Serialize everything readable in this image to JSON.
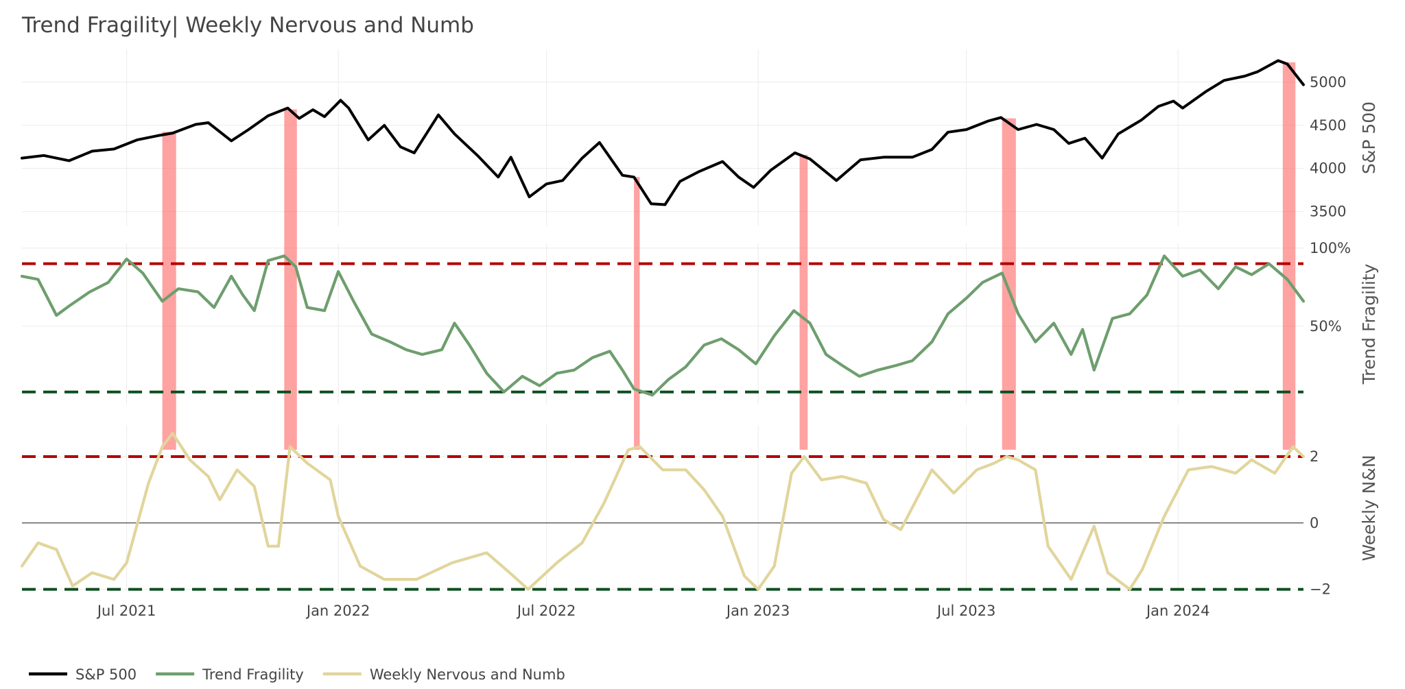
{
  "title": "Trend Fragility| Weekly Nervous and Numb",
  "chart_data": {
    "type": "line",
    "title": "Trend Fragility| Weekly Nervous and Numb",
    "x_range": [
      "2021-04-01",
      "2024-04-19"
    ],
    "x_ticks": [
      {
        "date": "2021-07-01",
        "label": "Jul 2021"
      },
      {
        "date": "2022-01-01",
        "label": "Jan 2022"
      },
      {
        "date": "2022-07-01",
        "label": "Jul 2022"
      },
      {
        "date": "2023-01-01",
        "label": "Jan 2023"
      },
      {
        "date": "2023-07-01",
        "label": "Jul 2023"
      },
      {
        "date": "2024-01-01",
        "label": "Jan 2024"
      }
    ],
    "panels": [
      {
        "id": "sp500",
        "ylabel": "S&P 500",
        "ylim": [
          3330,
          5380
        ],
        "yticks": [
          {
            "v": 3500,
            "label": "3500"
          },
          {
            "v": 4000,
            "label": "4000"
          },
          {
            "v": 4500,
            "label": "4500"
          },
          {
            "v": 5000,
            "label": "5000"
          }
        ]
      },
      {
        "id": "fragility",
        "ylabel": "Trend Fragility",
        "ylim": [
          0,
          1.03
        ],
        "yticks": [
          {
            "v": 0.5,
            "label": "50%"
          },
          {
            "v": 1.0,
            "label": "100%"
          }
        ],
        "thresholds": [
          {
            "v": 0.9,
            "color": "#b30000"
          },
          {
            "v": 0.08,
            "color": "#0b4f1f"
          }
        ]
      },
      {
        "id": "nn",
        "ylabel": "Weekly N&N",
        "ylim": [
          -2.05,
          2.95
        ],
        "yticks": [
          {
            "v": -2,
            "label": "−2"
          },
          {
            "v": 0,
            "label": "0"
          },
          {
            "v": 2,
            "label": "2"
          }
        ],
        "zero_line": true,
        "thresholds": [
          {
            "v": 2,
            "color": "#b30000"
          },
          {
            "v": -2,
            "color": "#0b4f1f"
          }
        ]
      }
    ],
    "signal_bands": [
      {
        "start": "2021-08-01",
        "end": "2021-08-13"
      },
      {
        "start": "2021-11-15",
        "end": "2021-11-26"
      },
      {
        "start": "2022-09-15",
        "end": "2022-09-20"
      },
      {
        "start": "2023-02-06",
        "end": "2023-02-13"
      },
      {
        "start": "2023-08-01",
        "end": "2023-08-13"
      },
      {
        "start": "2024-04-01",
        "end": "2024-04-12"
      }
    ],
    "series": [
      {
        "name": "S&P 500",
        "panel": "sp500",
        "color": "#000000",
        "points": [
          [
            "2021-04-01",
            4120
          ],
          [
            "2021-04-20",
            4150
          ],
          [
            "2021-05-12",
            4090
          ],
          [
            "2021-06-01",
            4200
          ],
          [
            "2021-06-20",
            4225
          ],
          [
            "2021-07-10",
            4330
          ],
          [
            "2021-07-28",
            4380
          ],
          [
            "2021-08-10",
            4410
          ],
          [
            "2021-08-30",
            4510
          ],
          [
            "2021-09-10",
            4530
          ],
          [
            "2021-09-30",
            4320
          ],
          [
            "2021-10-15",
            4450
          ],
          [
            "2021-11-01",
            4610
          ],
          [
            "2021-11-18",
            4700
          ],
          [
            "2021-11-28",
            4580
          ],
          [
            "2021-12-10",
            4680
          ],
          [
            "2021-12-20",
            4600
          ],
          [
            "2022-01-03",
            4790
          ],
          [
            "2022-01-10",
            4700
          ],
          [
            "2022-01-27",
            4330
          ],
          [
            "2022-02-10",
            4500
          ],
          [
            "2022-02-24",
            4250
          ],
          [
            "2022-03-08",
            4180
          ],
          [
            "2022-03-29",
            4620
          ],
          [
            "2022-04-12",
            4400
          ],
          [
            "2022-05-02",
            4150
          ],
          [
            "2022-05-20",
            3900
          ],
          [
            "2022-05-31",
            4130
          ],
          [
            "2022-06-16",
            3670
          ],
          [
            "2022-07-01",
            3820
          ],
          [
            "2022-07-15",
            3860
          ],
          [
            "2022-08-01",
            4120
          ],
          [
            "2022-08-16",
            4300
          ],
          [
            "2022-09-05",
            3920
          ],
          [
            "2022-09-15",
            3900
          ],
          [
            "2022-09-30",
            3590
          ],
          [
            "2022-10-12",
            3580
          ],
          [
            "2022-10-25",
            3850
          ],
          [
            "2022-11-10",
            3960
          ],
          [
            "2022-12-01",
            4080
          ],
          [
            "2022-12-15",
            3900
          ],
          [
            "2022-12-28",
            3780
          ],
          [
            "2023-01-12",
            3980
          ],
          [
            "2023-02-02",
            4180
          ],
          [
            "2023-02-15",
            4110
          ],
          [
            "2023-03-10",
            3860
          ],
          [
            "2023-03-31",
            4100
          ],
          [
            "2023-04-20",
            4130
          ],
          [
            "2023-05-15",
            4130
          ],
          [
            "2023-06-01",
            4220
          ],
          [
            "2023-06-15",
            4420
          ],
          [
            "2023-07-01",
            4450
          ],
          [
            "2023-07-20",
            4550
          ],
          [
            "2023-07-31",
            4590
          ],
          [
            "2023-08-15",
            4450
          ],
          [
            "2023-08-31",
            4510
          ],
          [
            "2023-09-15",
            4450
          ],
          [
            "2023-09-28",
            4290
          ],
          [
            "2023-10-12",
            4350
          ],
          [
            "2023-10-27",
            4120
          ],
          [
            "2023-11-10",
            4400
          ],
          [
            "2023-11-30",
            4560
          ],
          [
            "2023-12-15",
            4720
          ],
          [
            "2023-12-28",
            4780
          ],
          [
            "2024-01-05",
            4700
          ],
          [
            "2024-01-25",
            4890
          ],
          [
            "2024-02-10",
            5020
          ],
          [
            "2024-02-28",
            5070
          ],
          [
            "2024-03-10",
            5120
          ],
          [
            "2024-03-28",
            5250
          ],
          [
            "2024-04-05",
            5210
          ],
          [
            "2024-04-19",
            4970
          ]
        ]
      },
      {
        "name": "Trend Fragility",
        "panel": "fragility",
        "color": "#6e9e6e",
        "points": [
          [
            "2021-04-01",
            0.82
          ],
          [
            "2021-04-15",
            0.8
          ],
          [
            "2021-05-01",
            0.57
          ],
          [
            "2021-05-12",
            0.63
          ],
          [
            "2021-05-30",
            0.72
          ],
          [
            "2021-06-15",
            0.78
          ],
          [
            "2021-07-01",
            0.93
          ],
          [
            "2021-07-15",
            0.84
          ],
          [
            "2021-08-01",
            0.66
          ],
          [
            "2021-08-15",
            0.74
          ],
          [
            "2021-09-01",
            0.72
          ],
          [
            "2021-09-15",
            0.62
          ],
          [
            "2021-09-30",
            0.82
          ],
          [
            "2021-10-10",
            0.7
          ],
          [
            "2021-10-20",
            0.6
          ],
          [
            "2021-11-01",
            0.92
          ],
          [
            "2021-11-15",
            0.95
          ],
          [
            "2021-11-25",
            0.88
          ],
          [
            "2021-12-05",
            0.62
          ],
          [
            "2021-12-20",
            0.6
          ],
          [
            "2022-01-01",
            0.85
          ],
          [
            "2022-01-15",
            0.65
          ],
          [
            "2022-01-30",
            0.45
          ],
          [
            "2022-02-15",
            0.4
          ],
          [
            "2022-03-01",
            0.35
          ],
          [
            "2022-03-15",
            0.32
          ],
          [
            "2022-04-01",
            0.35
          ],
          [
            "2022-04-12",
            0.52
          ],
          [
            "2022-04-25",
            0.38
          ],
          [
            "2022-05-10",
            0.2
          ],
          [
            "2022-05-25",
            0.08
          ],
          [
            "2022-06-10",
            0.18
          ],
          [
            "2022-06-25",
            0.12
          ],
          [
            "2022-07-10",
            0.2
          ],
          [
            "2022-07-25",
            0.22
          ],
          [
            "2022-08-10",
            0.3
          ],
          [
            "2022-08-25",
            0.34
          ],
          [
            "2022-09-05",
            0.22
          ],
          [
            "2022-09-15",
            0.1
          ],
          [
            "2022-10-01",
            0.06
          ],
          [
            "2022-10-15",
            0.16
          ],
          [
            "2022-10-30",
            0.24
          ],
          [
            "2022-11-15",
            0.38
          ],
          [
            "2022-11-30",
            0.42
          ],
          [
            "2022-12-15",
            0.35
          ],
          [
            "2022-12-30",
            0.26
          ],
          [
            "2023-01-15",
            0.44
          ],
          [
            "2023-02-01",
            0.6
          ],
          [
            "2023-02-15",
            0.52
          ],
          [
            "2023-03-01",
            0.32
          ],
          [
            "2023-03-15",
            0.25
          ],
          [
            "2023-03-30",
            0.18
          ],
          [
            "2023-04-15",
            0.22
          ],
          [
            "2023-05-01",
            0.25
          ],
          [
            "2023-05-15",
            0.28
          ],
          [
            "2023-06-01",
            0.4
          ],
          [
            "2023-06-15",
            0.58
          ],
          [
            "2023-07-01",
            0.68
          ],
          [
            "2023-07-15",
            0.78
          ],
          [
            "2023-08-01",
            0.84
          ],
          [
            "2023-08-15",
            0.58
          ],
          [
            "2023-08-30",
            0.4
          ],
          [
            "2023-09-15",
            0.52
          ],
          [
            "2023-09-30",
            0.32
          ],
          [
            "2023-10-10",
            0.48
          ],
          [
            "2023-10-20",
            0.22
          ],
          [
            "2023-11-05",
            0.55
          ],
          [
            "2023-11-20",
            0.58
          ],
          [
            "2023-12-05",
            0.7
          ],
          [
            "2023-12-20",
            0.95
          ],
          [
            "2024-01-05",
            0.82
          ],
          [
            "2024-01-20",
            0.86
          ],
          [
            "2024-02-05",
            0.74
          ],
          [
            "2024-02-20",
            0.88
          ],
          [
            "2024-03-05",
            0.83
          ],
          [
            "2024-03-20",
            0.9
          ],
          [
            "2024-04-05",
            0.8
          ],
          [
            "2024-04-19",
            0.66
          ]
        ]
      },
      {
        "name": "Weekly Nervous and Numb",
        "panel": "nn",
        "color": "#e1d59c",
        "points": [
          [
            "2021-04-01",
            -1.3
          ],
          [
            "2021-04-15",
            -0.6
          ],
          [
            "2021-05-01",
            -0.8
          ],
          [
            "2021-05-15",
            -1.9
          ],
          [
            "2021-06-01",
            -1.5
          ],
          [
            "2021-06-20",
            -1.7
          ],
          [
            "2021-07-01",
            -1.2
          ],
          [
            "2021-07-20",
            1.2
          ],
          [
            "2021-08-01",
            2.3
          ],
          [
            "2021-08-10",
            2.7
          ],
          [
            "2021-08-25",
            1.9
          ],
          [
            "2021-09-10",
            1.4
          ],
          [
            "2021-09-20",
            0.7
          ],
          [
            "2021-10-05",
            1.6
          ],
          [
            "2021-10-20",
            1.1
          ],
          [
            "2021-11-01",
            -0.7
          ],
          [
            "2021-11-10",
            -0.7
          ],
          [
            "2021-11-20",
            2.3
          ],
          [
            "2021-12-05",
            1.8
          ],
          [
            "2021-12-25",
            1.3
          ],
          [
            "2022-01-01",
            0.2
          ],
          [
            "2022-01-20",
            -1.3
          ],
          [
            "2022-02-10",
            -1.7
          ],
          [
            "2022-03-10",
            -1.7
          ],
          [
            "2022-04-10",
            -1.2
          ],
          [
            "2022-05-10",
            -0.9
          ],
          [
            "2022-05-30",
            -1.5
          ],
          [
            "2022-06-15",
            -2.0
          ],
          [
            "2022-07-10",
            -1.2
          ],
          [
            "2022-08-01",
            -0.6
          ],
          [
            "2022-08-20",
            0.6
          ],
          [
            "2022-09-10",
            2.2
          ],
          [
            "2022-09-20",
            2.3
          ],
          [
            "2022-10-10",
            1.6
          ],
          [
            "2022-10-30",
            1.6
          ],
          [
            "2022-11-15",
            1.0
          ],
          [
            "2022-12-01",
            0.2
          ],
          [
            "2022-12-20",
            -1.6
          ],
          [
            "2023-01-01",
            -2.0
          ],
          [
            "2023-01-15",
            -1.3
          ],
          [
            "2023-01-30",
            1.5
          ],
          [
            "2023-02-10",
            2.0
          ],
          [
            "2023-02-25",
            1.3
          ],
          [
            "2023-03-15",
            1.4
          ],
          [
            "2023-04-05",
            1.2
          ],
          [
            "2023-04-20",
            0.1
          ],
          [
            "2023-05-05",
            -0.2
          ],
          [
            "2023-05-20",
            0.8
          ],
          [
            "2023-06-01",
            1.6
          ],
          [
            "2023-06-20",
            0.9
          ],
          [
            "2023-07-10",
            1.6
          ],
          [
            "2023-07-25",
            1.8
          ],
          [
            "2023-08-05",
            2.0
          ],
          [
            "2023-08-15",
            1.9
          ],
          [
            "2023-08-30",
            1.6
          ],
          [
            "2023-09-10",
            -0.7
          ],
          [
            "2023-09-30",
            -1.7
          ],
          [
            "2023-10-20",
            -0.1
          ],
          [
            "2023-11-01",
            -1.5
          ],
          [
            "2023-11-20",
            -2.0
          ],
          [
            "2023-12-01",
            -1.4
          ],
          [
            "2023-12-20",
            0.2
          ],
          [
            "2024-01-10",
            1.6
          ],
          [
            "2024-01-30",
            1.7
          ],
          [
            "2024-02-20",
            1.5
          ],
          [
            "2024-03-05",
            1.9
          ],
          [
            "2024-03-25",
            1.5
          ],
          [
            "2024-04-10",
            2.3
          ],
          [
            "2024-04-19",
            2.0
          ]
        ]
      }
    ],
    "legend": {
      "position": "bottom-left",
      "items": [
        {
          "label": "S&P 500",
          "color": "#000000"
        },
        {
          "label": "Trend Fragility",
          "color": "#6e9e6e"
        },
        {
          "label": "Weekly Nervous and Numb",
          "color": "#e1d59c"
        }
      ]
    }
  }
}
